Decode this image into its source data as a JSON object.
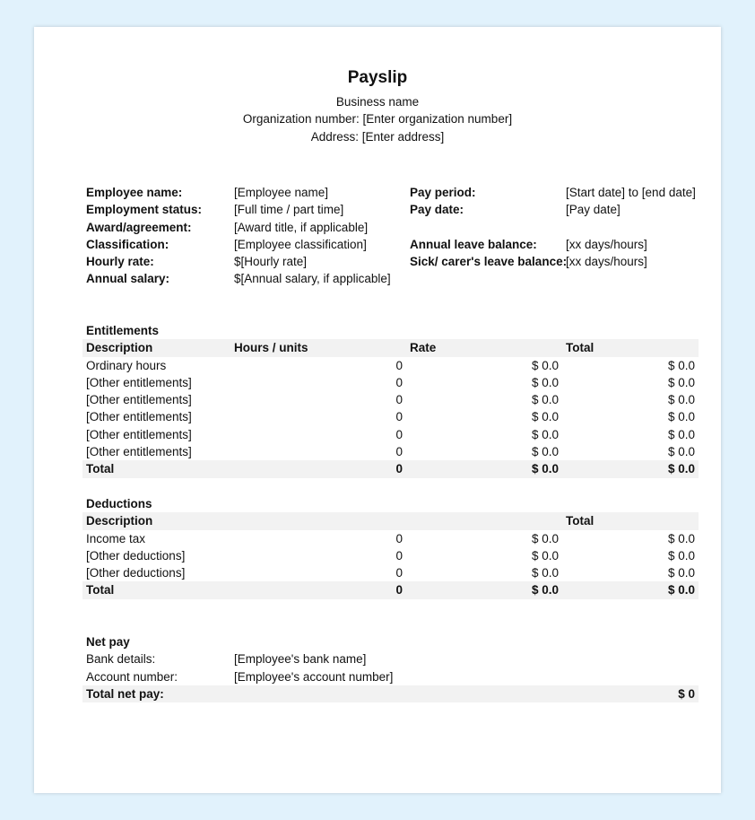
{
  "header": {
    "title": "Payslip",
    "business_name": "Business name",
    "organization": "Organization number: [Enter organization number]",
    "address": "Address: [Enter address]"
  },
  "employee_info": [
    {
      "label": "Employee name:",
      "value": "[Employee name]",
      "label2": "Pay period:",
      "value2": "[Start date] to [end date]"
    },
    {
      "label": "Employment status:",
      "value": "[Full time / part time]",
      "label2": "Pay date:",
      "value2": "[Pay date]"
    },
    {
      "label": "Award/agreement:",
      "value": "[Award title, if applicable]",
      "label2": "",
      "value2": ""
    },
    {
      "label": "Classification:",
      "value": "[Employee classification]",
      "label2": "Annual leave balance:",
      "value2": "[xx days/hours]"
    },
    {
      "label": "Hourly rate:",
      "value": "$[Hourly rate]",
      "label2": "Sick/ carer's leave balance:",
      "value2": "[xx days/hours]"
    },
    {
      "label": "Annual salary:",
      "value": "$[Annual salary, if applicable]",
      "label2": "",
      "value2": ""
    }
  ],
  "entitlements": {
    "title": "Entitlements",
    "columns": [
      "Description",
      "Hours / units",
      "Rate",
      "Total"
    ],
    "rows": [
      [
        "Ordinary hours",
        "0",
        "$ 0.0",
        "$ 0.0"
      ],
      [
        "[Other entitlements]",
        "0",
        "$ 0.0",
        "$ 0.0"
      ],
      [
        "[Other entitlements]",
        "0",
        "$ 0.0",
        "$ 0.0"
      ],
      [
        "[Other entitlements]",
        "0",
        "$ 0.0",
        "$ 0.0"
      ],
      [
        "[Other entitlements]",
        "0",
        "$ 0.0",
        "$ 0.0"
      ],
      [
        "[Other entitlements]",
        "0",
        "$ 0.0",
        "$ 0.0"
      ]
    ],
    "total": [
      "Total",
      "0",
      "$ 0.0",
      "$ 0.0"
    ]
  },
  "deductions": {
    "title": "Deductions",
    "columns": [
      "Description",
      "",
      "",
      "Total"
    ],
    "rows": [
      [
        "Income tax",
        "0",
        "$ 0.0",
        "$ 0.0"
      ],
      [
        "[Other deductions]",
        "0",
        "$ 0.0",
        "$ 0.0"
      ],
      [
        "[Other deductions]",
        "0",
        "$ 0.0",
        "$ 0.0"
      ]
    ],
    "total": [
      "Total",
      "0",
      "$ 0.0",
      "$ 0.0"
    ]
  },
  "net_pay": {
    "title": "Net pay",
    "bank_label": "Bank details:",
    "bank_value": "[Employee's bank name]",
    "account_label": "Account number:",
    "account_value": "[Employee's account number]",
    "total_label": "Total net pay:",
    "total_value": "$ 0"
  }
}
